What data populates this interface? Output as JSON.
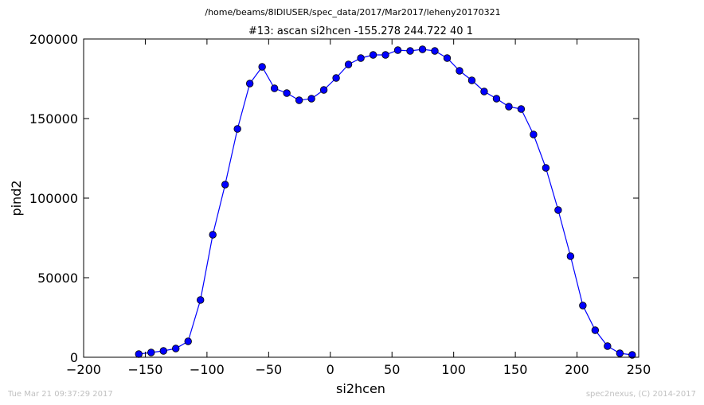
{
  "header": {
    "path": "/home/beams/8IDIUSER/spec_data/2017/Mar2017/leheny20170321",
    "scan": "#13: ascan  si2hcen -155.278 244.722  40 1"
  },
  "footer": {
    "timestamp": "Tue Mar 21 09:37:29 2017",
    "credit": "spec2nexus, (C) 2014-2017"
  },
  "chart_data": {
    "type": "line",
    "title": "#13: ascan  si2hcen -155.278 244.722  40 1",
    "xlabel": "si2hcen",
    "ylabel": "pind2",
    "xlim": [
      -200,
      250
    ],
    "ylim": [
      0,
      200000
    ],
    "x_ticks": [
      -200,
      -150,
      -100,
      -50,
      0,
      50,
      100,
      150,
      200,
      250
    ],
    "x_tick_labels": [
      "−200",
      "−150",
      "−100",
      "−50",
      "0",
      "50",
      "100",
      "150",
      "200",
      "250"
    ],
    "y_ticks": [
      0,
      50000,
      100000,
      150000,
      200000
    ],
    "y_tick_labels": [
      "0",
      "50000",
      "100000",
      "150000",
      "200000"
    ],
    "grid": false,
    "line_color": "#0000ff",
    "marker": "circle",
    "series": [
      {
        "x": [
          -155.278,
          -145.278,
          -135.278,
          -125.278,
          -115.278,
          -105.278,
          -95.278,
          -85.278,
          -75.278,
          -65.278,
          -55.278,
          -45.278,
          -35.278,
          -25.278,
          -15.278,
          -5.278,
          4.722,
          14.722,
          24.722,
          34.722,
          44.722,
          54.722,
          64.722,
          74.722,
          84.722,
          94.722,
          104.722,
          114.722,
          124.722,
          134.722,
          144.722,
          154.722,
          164.722,
          174.722,
          184.722,
          194.722,
          204.722,
          214.722,
          224.722,
          234.722,
          244.722
        ],
        "y": [
          2000,
          3000,
          4000,
          5500,
          10000,
          36000,
          77000,
          108500,
          143500,
          172000,
          182500,
          169000,
          166000,
          161500,
          162500,
          168000,
          175500,
          184000,
          188000,
          190000,
          190000,
          193000,
          192500,
          193500,
          192500,
          188000,
          180000,
          174000,
          167000,
          162500,
          157500,
          156000,
          140000,
          119000,
          92500,
          63500,
          32500,
          17000,
          7000,
          2500,
          1500
        ]
      }
    ]
  }
}
